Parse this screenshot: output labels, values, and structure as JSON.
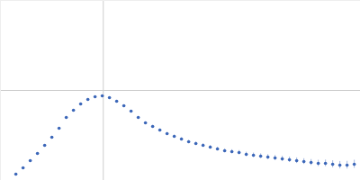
{
  "chart_data": {
    "type": "scatter",
    "x": [
      0.15,
      0.22,
      0.29,
      0.36,
      0.43,
      0.5,
      0.57,
      0.64,
      0.71,
      0.78,
      0.85,
      0.92,
      0.99,
      1.06,
      1.13,
      1.2,
      1.27,
      1.34,
      1.41,
      1.48,
      1.55,
      1.62,
      1.69,
      1.76,
      1.83,
      1.9,
      1.97,
      2.04,
      2.11,
      2.18,
      2.25,
      2.32,
      2.39,
      2.46,
      2.53,
      2.6,
      2.67,
      2.74,
      2.81,
      2.88,
      2.95,
      3.02,
      3.09,
      3.16,
      3.23,
      3.3,
      3.37,
      3.44
    ],
    "values": [
      0.07,
      0.14,
      0.22,
      0.3,
      0.39,
      0.48,
      0.58,
      0.7,
      0.78,
      0.85,
      0.9,
      0.93,
      0.94,
      0.92,
      0.88,
      0.83,
      0.77,
      0.7,
      0.64,
      0.6,
      0.56,
      0.52,
      0.49,
      0.46,
      0.43,
      0.41,
      0.39,
      0.37,
      0.35,
      0.33,
      0.32,
      0.31,
      0.29,
      0.28,
      0.27,
      0.26,
      0.25,
      0.24,
      0.23,
      0.22,
      0.21,
      0.2,
      0.19,
      0.19,
      0.18,
      0.17,
      0.17,
      0.18
    ],
    "errors": [
      0.004,
      0.004,
      0.005,
      0.005,
      0.005,
      0.006,
      0.006,
      0.006,
      0.007,
      0.007,
      0.007,
      0.008,
      0.008,
      0.008,
      0.009,
      0.009,
      0.01,
      0.01,
      0.011,
      0.012,
      0.012,
      0.013,
      0.014,
      0.015,
      0.016,
      0.017,
      0.018,
      0.019,
      0.02,
      0.021,
      0.022,
      0.023,
      0.024,
      0.025,
      0.026,
      0.027,
      0.028,
      0.029,
      0.03,
      0.031,
      0.032,
      0.033,
      0.035,
      0.037,
      0.039,
      0.041,
      0.043,
      0.045
    ],
    "color": "#3b66b8",
    "marker": "circle",
    "xlim": [
      0,
      3.5
    ],
    "ylim": [
      0,
      2
    ],
    "xticks": [
      1
    ],
    "yticks": [
      1
    ],
    "grid": true,
    "tick_labels": false
  }
}
